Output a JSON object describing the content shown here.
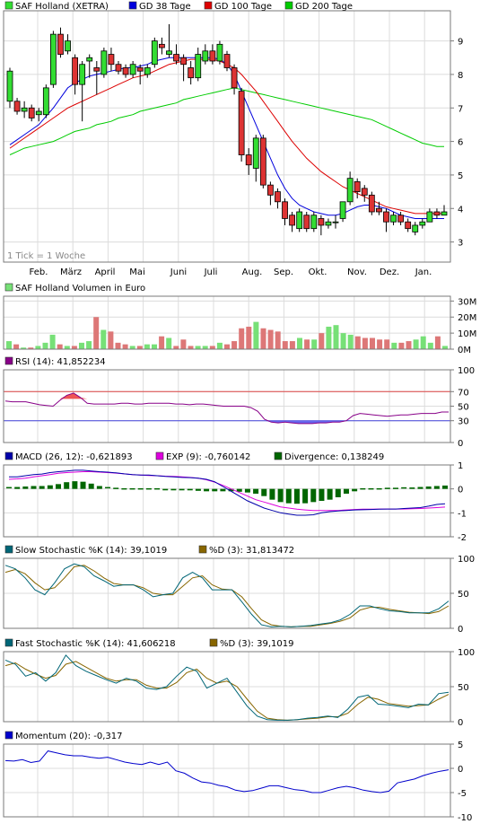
{
  "colors": {
    "frame": "#7a7a7a",
    "grid": "#dcdcdc",
    "up": "#33dd33",
    "down": "#dd3333",
    "sma38": "#0000dd",
    "sma100": "#dd0000",
    "sma200": "#00cc00",
    "vol_up": "#77e077",
    "vol_down": "#dd7777",
    "rsi_line": "#880088",
    "rsi_70": "#dd4444",
    "rsi_30": "#4444dd",
    "macd": "#0000aa",
    "exp": "#dd00dd",
    "div": "#006600",
    "stoch_k": "#006677",
    "stoch_d": "#886600",
    "momentum": "#0000cc"
  },
  "chart_data": [
    {
      "type": "candlestick",
      "legend": [
        {
          "name": "SAF Holland (XETRA)",
          "color": "#33dd33"
        },
        {
          "name": "GD 38 Tage",
          "color": "#0000dd"
        },
        {
          "name": "GD 100 Tage",
          "color": "#dd0000"
        },
        {
          "name": "GD 200 Tage",
          "color": "#00cc00"
        }
      ],
      "note": "1 Tick = 1 Woche",
      "x_labels": [
        "Feb.",
        "März",
        "April",
        "Mai",
        "Juni",
        "Juli",
        "Aug.",
        "Sep.",
        "Okt.",
        "Nov.",
        "Dez.",
        "Jan."
      ],
      "yticks": [
        3,
        4,
        5,
        6,
        7,
        8,
        9
      ],
      "ylim": [
        2.4,
        9.9
      ],
      "candles": [
        [
          7.2,
          8.1,
          7.0,
          8.2
        ],
        [
          7.2,
          6.9,
          6.8,
          7.3
        ],
        [
          6.9,
          7.0,
          6.7,
          7.2
        ],
        [
          7.0,
          6.7,
          6.6,
          7.1
        ],
        [
          6.8,
          6.9,
          6.6,
          7.0
        ],
        [
          6.8,
          7.6,
          6.7,
          7.7
        ],
        [
          7.7,
          9.2,
          7.6,
          9.3
        ],
        [
          9.2,
          8.6,
          8.5,
          9.4
        ],
        [
          8.7,
          9.0,
          8.6,
          9.2
        ],
        [
          8.5,
          7.7,
          7.4,
          8.6
        ],
        [
          7.7,
          8.3,
          6.6,
          8.4
        ],
        [
          8.4,
          8.5,
          7.9,
          8.6
        ],
        [
          8.2,
          8.1,
          7.4,
          8.4
        ],
        [
          8.0,
          8.7,
          7.9,
          8.8
        ],
        [
          8.6,
          8.3,
          8.1,
          8.8
        ],
        [
          8.3,
          8.1,
          8.0,
          8.4
        ],
        [
          8.2,
          8.0,
          7.9,
          8.3
        ],
        [
          8.0,
          8.3,
          7.9,
          8.4
        ],
        [
          8.2,
          8.1,
          7.7,
          8.3
        ],
        [
          8.0,
          8.2,
          7.9,
          8.3
        ],
        [
          8.3,
          9.0,
          8.2,
          9.1
        ],
        [
          8.9,
          8.8,
          8.6,
          9.1
        ],
        [
          8.6,
          8.7,
          8.5,
          9.5
        ],
        [
          8.6,
          8.4,
          8.3,
          8.9
        ],
        [
          8.5,
          8.3,
          7.8,
          8.6
        ],
        [
          8.2,
          7.9,
          7.7,
          8.4
        ],
        [
          7.9,
          8.6,
          7.8,
          8.8
        ],
        [
          8.4,
          8.7,
          8.3,
          8.9
        ],
        [
          8.7,
          8.4,
          8.3,
          8.9
        ],
        [
          8.4,
          8.9,
          8.3,
          9.0
        ],
        [
          8.6,
          8.2,
          8.1,
          8.7
        ],
        [
          8.2,
          7.6,
          7.4,
          8.3
        ],
        [
          7.5,
          5.6,
          5.4,
          7.6
        ],
        [
          5.6,
          5.3,
          5.0,
          5.8
        ],
        [
          5.2,
          6.1,
          4.8,
          6.2
        ],
        [
          6.1,
          4.7,
          4.6,
          6.2
        ],
        [
          4.7,
          4.4,
          4.1,
          4.8
        ],
        [
          4.5,
          4.2,
          4.0,
          4.6
        ],
        [
          4.2,
          3.7,
          3.5,
          4.3
        ],
        [
          3.8,
          3.5,
          3.3,
          3.9
        ],
        [
          3.4,
          3.9,
          3.3,
          4.0
        ],
        [
          3.8,
          3.4,
          3.3,
          3.9
        ],
        [
          3.4,
          3.8,
          3.3,
          3.9
        ],
        [
          3.7,
          3.5,
          3.2,
          3.8
        ],
        [
          3.5,
          3.6,
          3.4,
          3.7
        ],
        [
          3.6,
          3.6,
          3.4,
          3.8
        ],
        [
          3.7,
          4.2,
          3.6,
          4.2
        ],
        [
          4.2,
          4.9,
          4.1,
          5.1
        ],
        [
          4.8,
          4.5,
          4.3,
          4.9
        ],
        [
          4.6,
          4.4,
          4.2,
          4.7
        ],
        [
          4.4,
          3.9,
          3.8,
          4.5
        ],
        [
          4.0,
          3.9,
          3.8,
          4.2
        ],
        [
          3.9,
          3.6,
          3.3,
          4.0
        ],
        [
          3.6,
          3.8,
          3.5,
          3.9
        ],
        [
          3.8,
          3.6,
          3.5,
          3.9
        ],
        [
          3.6,
          3.4,
          3.3,
          3.7
        ],
        [
          3.3,
          3.5,
          3.2,
          3.6
        ],
        [
          3.5,
          3.6,
          3.4,
          3.7
        ],
        [
          3.6,
          3.9,
          3.6,
          4.0
        ],
        [
          3.9,
          3.8,
          3.7,
          4.0
        ],
        [
          3.8,
          3.9,
          3.8,
          4.1
        ]
      ],
      "sma38": [
        5.9,
        6.05,
        6.2,
        6.35,
        6.5,
        6.75,
        7.0,
        7.3,
        7.6,
        7.75,
        7.85,
        7.95,
        8.0,
        8.05,
        8.1,
        8.15,
        8.2,
        8.2,
        8.25,
        8.3,
        8.4,
        8.45,
        8.5,
        8.5,
        8.5,
        8.5,
        8.5,
        8.5,
        8.5,
        8.45,
        8.3,
        8.0,
        7.5,
        7.0,
        6.5,
        6.0,
        5.5,
        5.0,
        4.6,
        4.3,
        4.1,
        4.0,
        3.9,
        3.85,
        3.8,
        3.8,
        3.85,
        3.95,
        4.05,
        4.1,
        4.1,
        4.05,
        4.0,
        3.9,
        3.8,
        3.75,
        3.7,
        3.7,
        3.7,
        3.7,
        3.7
      ],
      "sma100": [
        5.8,
        5.95,
        6.1,
        6.25,
        6.4,
        6.55,
        6.7,
        6.85,
        7.0,
        7.1,
        7.2,
        7.3,
        7.4,
        7.5,
        7.6,
        7.7,
        7.8,
        7.9,
        7.95,
        8.0,
        8.1,
        8.2,
        8.3,
        8.35,
        8.4,
        8.45,
        8.45,
        8.45,
        8.45,
        8.4,
        8.3,
        8.2,
        8.0,
        7.75,
        7.5,
        7.2,
        6.9,
        6.6,
        6.3,
        6.0,
        5.75,
        5.5,
        5.3,
        5.1,
        4.95,
        4.8,
        4.65,
        4.55,
        4.45,
        4.35,
        4.25,
        4.15,
        4.05,
        4.0,
        3.95,
        3.9,
        3.85,
        3.85,
        3.85,
        3.85,
        3.85
      ],
      "sma200": [
        5.6,
        5.7,
        5.8,
        5.85,
        5.9,
        5.95,
        6.0,
        6.1,
        6.2,
        6.3,
        6.35,
        6.4,
        6.5,
        6.55,
        6.6,
        6.7,
        6.75,
        6.8,
        6.9,
        6.95,
        7.0,
        7.05,
        7.1,
        7.15,
        7.25,
        7.3,
        7.35,
        7.4,
        7.45,
        7.5,
        7.55,
        7.6,
        7.55,
        7.5,
        7.45,
        7.4,
        7.35,
        7.3,
        7.25,
        7.2,
        7.15,
        7.1,
        7.05,
        7.0,
        6.95,
        6.9,
        6.85,
        6.8,
        6.75,
        6.7,
        6.65,
        6.55,
        6.45,
        6.35,
        6.25,
        6.15,
        6.05,
        5.95,
        5.9,
        5.85,
        5.85
      ]
    },
    {
      "type": "bar",
      "legend": [
        {
          "name": "SAF Holland Volumen in Euro",
          "color": "#77e077"
        }
      ],
      "ytick_labels": [
        "30M",
        "20M",
        "10M",
        "0M"
      ],
      "yticks": [
        30,
        20,
        10,
        0
      ],
      "ylim": [
        0,
        33
      ],
      "values": [
        5,
        3,
        1,
        1,
        2,
        4,
        9,
        3,
        2,
        2,
        4,
        5,
        20,
        12,
        11,
        4,
        3,
        2,
        2,
        3,
        3,
        8,
        7,
        2,
        6,
        2,
        2,
        2,
        2,
        4,
        3,
        5,
        13,
        14,
        17,
        13,
        12,
        11,
        5,
        5,
        7,
        6,
        6,
        10,
        14,
        15,
        10,
        9,
        8,
        7,
        7,
        6,
        6,
        4,
        4,
        5,
        6,
        8,
        4,
        8,
        2
      ]
    },
    {
      "type": "line",
      "legend": [
        {
          "name": "RSI (14): 41,852234",
          "color": "#880088"
        }
      ],
      "yticks": [
        100,
        70,
        50,
        30,
        0
      ],
      "ytick_labels": [
        "100",
        "70",
        "50",
        "30",
        "0"
      ],
      "ylim": [
        0,
        100
      ],
      "levels": [
        70,
        30
      ],
      "values": [
        57,
        56,
        56,
        56,
        54,
        52,
        51,
        50,
        58,
        65,
        68,
        62,
        54,
        53,
        53,
        53,
        53,
        54,
        54,
        53,
        53,
        54,
        54,
        54,
        54,
        53,
        53,
        52,
        53,
        53,
        52,
        51,
        50,
        50,
        50,
        50,
        48,
        43,
        32,
        28,
        27,
        28,
        27,
        26,
        26,
        26,
        27,
        27,
        28,
        28,
        30,
        37,
        40,
        39,
        38,
        37,
        36,
        37,
        38,
        38,
        39,
        40,
        40,
        40,
        42,
        42
      ]
    },
    {
      "type": "line",
      "legend": [
        {
          "name": "MACD (26, 12): -0,621893",
          "color": "#0000aa"
        },
        {
          "name": "EXP (9): -0,760142",
          "color": "#dd00dd"
        },
        {
          "name": "Divergence: 0,138249",
          "color": "#006600"
        }
      ],
      "yticks": [
        1,
        0,
        -1,
        -2
      ],
      "ytick_labels": [
        "1",
        "0",
        "-1",
        "-2"
      ],
      "ylim": [
        -2,
        1
      ],
      "macd": [
        0.5,
        0.5,
        0.55,
        0.6,
        0.62,
        0.68,
        0.72,
        0.75,
        0.78,
        0.78,
        0.75,
        0.72,
        0.7,
        0.67,
        0.63,
        0.6,
        0.58,
        0.58,
        0.55,
        0.52,
        0.5,
        0.48,
        0.47,
        0.45,
        0.4,
        0.3,
        0.1,
        -0.1,
        -0.3,
        -0.5,
        -0.65,
        -0.8,
        -0.9,
        -1.0,
        -1.05,
        -1.1,
        -1.1,
        -1.08,
        -1.0,
        -0.95,
        -0.92,
        -0.9,
        -0.88,
        -0.87,
        -0.86,
        -0.85,
        -0.84,
        -0.84,
        -0.82,
        -0.8,
        -0.78,
        -0.72,
        -0.65,
        -0.62
      ],
      "exp": [
        0.4,
        0.42,
        0.45,
        0.5,
        0.55,
        0.6,
        0.65,
        0.68,
        0.7,
        0.72,
        0.72,
        0.7,
        0.68,
        0.66,
        0.63,
        0.6,
        0.58,
        0.56,
        0.55,
        0.53,
        0.52,
        0.5,
        0.48,
        0.45,
        0.38,
        0.28,
        0.15,
        0.0,
        -0.15,
        -0.3,
        -0.45,
        -0.55,
        -0.65,
        -0.75,
        -0.8,
        -0.85,
        -0.88,
        -0.9,
        -0.9,
        -0.9,
        -0.9,
        -0.88,
        -0.86,
        -0.85,
        -0.85,
        -0.84,
        -0.84,
        -0.84,
        -0.84,
        -0.83,
        -0.82,
        -0.8,
        -0.78,
        -0.76
      ],
      "divergence": [
        0.05,
        0.08,
        0.1,
        0.12,
        0.12,
        0.15,
        0.2,
        0.28,
        0.32,
        0.3,
        0.22,
        0.12,
        0.05,
        0.02,
        0.0,
        -0.02,
        -0.04,
        -0.04,
        -0.04,
        -0.06,
        -0.06,
        -0.06,
        -0.06,
        -0.08,
        -0.1,
        -0.1,
        -0.1,
        -0.1,
        -0.12,
        -0.15,
        -0.2,
        -0.3,
        -0.45,
        -0.55,
        -0.6,
        -0.62,
        -0.6,
        -0.55,
        -0.5,
        -0.45,
        -0.35,
        -0.2,
        -0.1,
        -0.05,
        -0.02,
        0.0,
        0.02,
        0.02,
        0.04,
        0.06,
        0.08,
        0.1,
        0.12,
        0.14
      ]
    },
    {
      "type": "line",
      "legend": [
        {
          "name": "Slow Stochastic %K (14): 39,1019",
          "color": "#006677"
        },
        {
          "name": "%D (3): 31,813472",
          "color": "#886600"
        }
      ],
      "yticks": [
        100,
        50,
        0
      ],
      "ytick_labels": [
        "100",
        "50",
        "0"
      ],
      "ylim": [
        0,
        100
      ],
      "k": [
        90,
        85,
        72,
        55,
        48,
        65,
        85,
        92,
        88,
        75,
        68,
        60,
        62,
        62,
        55,
        45,
        48,
        50,
        72,
        80,
        72,
        55,
        55,
        55,
        38,
        20,
        5,
        2,
        3,
        2,
        3,
        4,
        6,
        8,
        12,
        20,
        32,
        32,
        28,
        25,
        24,
        22,
        22,
        22,
        28,
        39
      ],
      "d": [
        80,
        84,
        78,
        65,
        55,
        58,
        72,
        88,
        90,
        82,
        72,
        64,
        62,
        62,
        58,
        50,
        48,
        48,
        60,
        72,
        75,
        62,
        56,
        55,
        45,
        28,
        12,
        5,
        3,
        2,
        3,
        3,
        5,
        7,
        10,
        15,
        26,
        30,
        30,
        27,
        25,
        23,
        22,
        21,
        24,
        32
      ]
    },
    {
      "type": "line",
      "legend": [
        {
          "name": "Fast Stochastic %K (14): 41,606218",
          "color": "#006677"
        },
        {
          "name": "%D (3): 39,1019",
          "color": "#886600"
        }
      ],
      "yticks": [
        100,
        50,
        0
      ],
      "ytick_labels": [
        "100",
        "50",
        "0"
      ],
      "ylim": [
        0,
        100
      ],
      "k": [
        88,
        82,
        65,
        70,
        58,
        70,
        95,
        80,
        72,
        66,
        60,
        55,
        62,
        58,
        48,
        46,
        50,
        65,
        78,
        72,
        48,
        55,
        62,
        42,
        22,
        8,
        3,
        2,
        2,
        3,
        5,
        6,
        8,
        6,
        18,
        35,
        38,
        25,
        24,
        22,
        20,
        25,
        24,
        40,
        42
      ],
      "d": [
        80,
        84,
        75,
        68,
        62,
        66,
        82,
        86,
        78,
        70,
        62,
        58,
        60,
        60,
        52,
        48,
        48,
        56,
        70,
        75,
        62,
        55,
        58,
        50,
        32,
        15,
        5,
        3,
        2,
        3,
        4,
        5,
        7,
        7,
        12,
        25,
        35,
        32,
        26,
        24,
        22,
        23,
        24,
        32,
        39
      ]
    },
    {
      "type": "line",
      "legend": [
        {
          "name": "Momentum (20): -0,317",
          "color": "#0000cc"
        }
      ],
      "yticks": [
        5,
        0,
        -5,
        -10
      ],
      "ytick_labels": [
        "5",
        "0",
        "-5",
        "-10"
      ],
      "ylim": [
        -10,
        5
      ],
      "values": [
        1.6,
        1.5,
        1.8,
        1.2,
        1.5,
        3.6,
        3.2,
        2.8,
        2.6,
        2.6,
        2.3,
        2.1,
        2.3,
        1.8,
        1.3,
        1.0,
        0.8,
        1.3,
        0.8,
        1.3,
        -0.5,
        -1.0,
        -2.0,
        -2.8,
        -3.0,
        -3.5,
        -3.8,
        -4.5,
        -4.8,
        -4.6,
        -4.1,
        -3.6,
        -3.6,
        -4.0,
        -4.4,
        -4.6,
        -5.0,
        -5.0,
        -4.5,
        -4.0,
        -3.7,
        -4.0,
        -4.5,
        -4.8,
        -5.0,
        -4.7,
        -3.0,
        -2.6,
        -2.2,
        -1.5,
        -1.0,
        -0.6,
        -0.3
      ]
    }
  ]
}
